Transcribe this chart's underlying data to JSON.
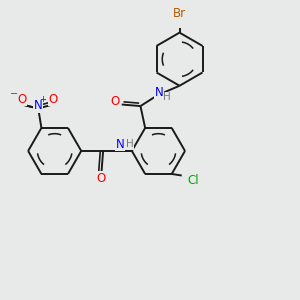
{
  "background_color": "#e8eaea",
  "bond_color": "#1a1a1a",
  "bond_width": 1.4,
  "atom_colors": {
    "C": "#1a1a1a",
    "N": "#0000ff",
    "O": "#ff0000",
    "Cl": "#00aa00",
    "Br": "#b35900",
    "H": "#7a7a7a"
  },
  "font_size": 8.5
}
